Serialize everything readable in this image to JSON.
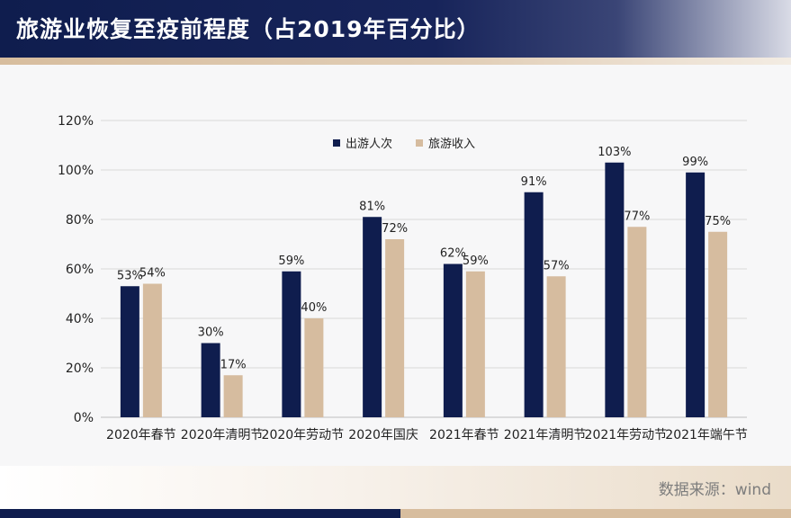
{
  "header": {
    "title": "旅游业恢复至疫前程度（占2019年百分比）"
  },
  "footer": {
    "source": "数据来源：wind"
  },
  "colors": {
    "series_trips": "#0f1d4e",
    "series_revenue": "#d6bc9f",
    "gridline": "#d9d9d9",
    "header_bg": "#0f1d4e",
    "accent": "#d7bd9e"
  },
  "chart_data": {
    "type": "bar",
    "title": "",
    "xlabel": "",
    "ylabel": "",
    "ylim": [
      0,
      120
    ],
    "yticks": [
      0,
      20,
      40,
      60,
      80,
      100,
      120
    ],
    "ytick_labels": [
      "0%",
      "20%",
      "40%",
      "60%",
      "80%",
      "100%",
      "120%"
    ],
    "grid": true,
    "legend_position": "top-center",
    "categories": [
      "2020年春节",
      "2020年清明节",
      "2020年劳动节",
      "2020年国庆",
      "2021年春节",
      "2021年清明节",
      "2021年劳动节",
      "2021年端午节"
    ],
    "series": [
      {
        "name": "出游人次",
        "values": [
          53,
          30,
          59,
          81,
          62,
          91,
          103,
          99
        ],
        "labels": [
          "53%",
          "30%",
          "59%",
          "81%",
          "62%",
          "91%",
          "103%",
          "99%"
        ]
      },
      {
        "name": "旅游收入",
        "values": [
          54,
          17,
          40,
          72,
          59,
          57,
          77,
          75
        ],
        "labels": [
          "54%",
          "17%",
          "40%",
          "72%",
          "59%",
          "57%",
          "77%",
          "75%"
        ]
      }
    ]
  }
}
